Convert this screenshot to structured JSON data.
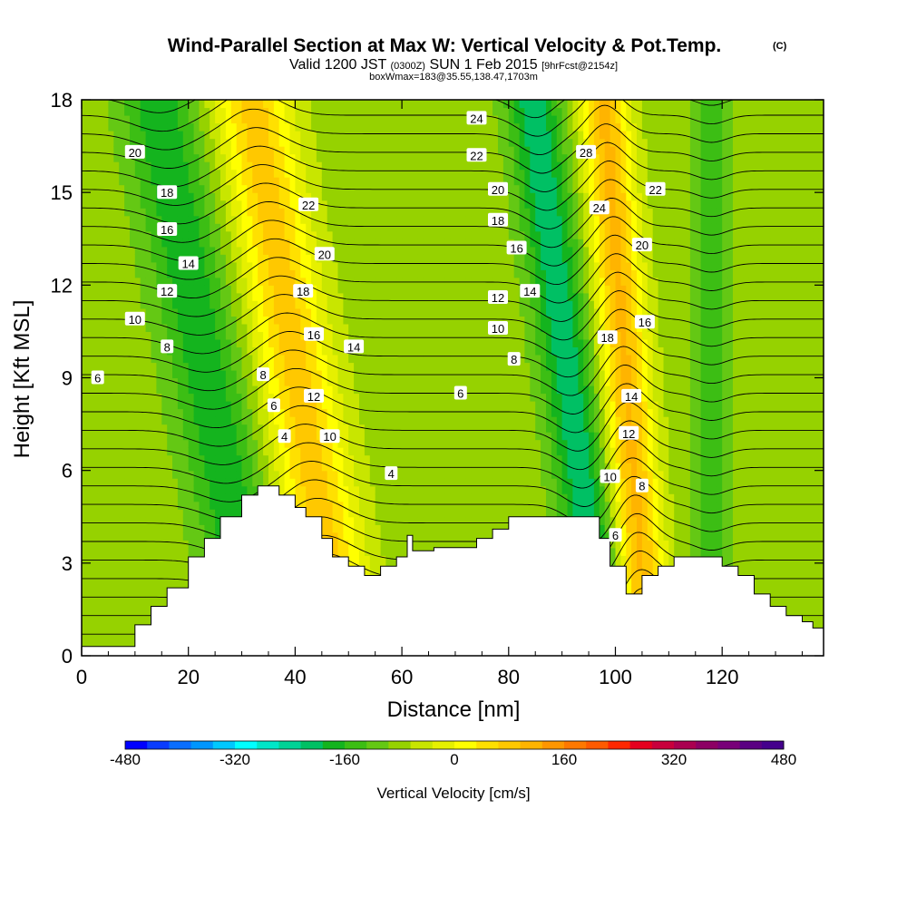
{
  "chart_data": {
    "type": "heatmap",
    "title": "Wind-Parallel Section at Max W: Vertical Velocity & Pot.Temp.",
    "title_mark": "(C)",
    "subtitle": {
      "valid": "Valid 1200 JST",
      "utc": "(0300Z)",
      "date": "SUN 1 Feb 2015",
      "fcst": "[9hrFcst@2154z]"
    },
    "info_line": "boxWmax=183@35.55,138.47,1703m",
    "xlabel": "Distance [nm]",
    "ylabel": "Height [Kft MSL]",
    "xlim": [
      0,
      139
    ],
    "ylim": [
      0,
      18
    ],
    "xticks": [
      "0",
      "20",
      "40",
      "60",
      "80",
      "100",
      "120"
    ],
    "yticks": [
      "0",
      "3",
      "6",
      "9",
      "12",
      "15",
      "18"
    ],
    "colorbar": {
      "label": "Vertical Velocity [cm/s]",
      "ticks": [
        "-480",
        "-320",
        "-160",
        "0",
        "160",
        "320",
        "480"
      ],
      "min": -480,
      "max": 480,
      "step": 40,
      "colors": [
        "#0000ff",
        "#0a3cff",
        "#0a6eff",
        "#0096ff",
        "#00c8ff",
        "#00ffff",
        "#00e6c8",
        "#00d296",
        "#00c064",
        "#14b41e",
        "#3cbe14",
        "#64c814",
        "#96d200",
        "#c8e600",
        "#e6f000",
        "#ffff00",
        "#ffe000",
        "#ffc800",
        "#ffb400",
        "#ff9600",
        "#ff7800",
        "#ff5a00",
        "#ff2800",
        "#e6001e",
        "#c8003c",
        "#aa0050",
        "#8c0064",
        "#780078",
        "#5a0082",
        "#44008c"
      ]
    },
    "velocity_field": {
      "units": "cm/s",
      "background": 20,
      "bands": [
        {
          "x0": 33,
          "slope_nm_per_kft": -1.05,
          "width_nm": 7,
          "peak": -130
        },
        {
          "x0": 49,
          "slope_nm_per_kft": -0.95,
          "width_nm": 7,
          "peak": 200
        },
        {
          "x0": 98,
          "slope_nm_per_kft": -0.75,
          "width_nm": 5,
          "peak": -170
        },
        {
          "x0": 106,
          "slope_nm_per_kft": -0.45,
          "width_nm": 4.5,
          "peak": 230
        },
        {
          "x0": 118,
          "slope_nm_per_kft": 0.0,
          "width_nm": 4,
          "peak": -70
        }
      ]
    },
    "theta_contours": {
      "units": "°C",
      "interval": 1,
      "labeled": [
        {
          "value": "20",
          "x": 10,
          "y": 16.3
        },
        {
          "value": "18",
          "x": 16,
          "y": 15.0
        },
        {
          "value": "16",
          "x": 16,
          "y": 13.8
        },
        {
          "value": "14",
          "x": 20,
          "y": 12.7
        },
        {
          "value": "12",
          "x": 16,
          "y": 11.8
        },
        {
          "value": "10",
          "x": 10,
          "y": 10.9
        },
        {
          "value": "8",
          "x": 16,
          "y": 10.0
        },
        {
          "value": "6",
          "x": 3,
          "y": 9.0
        },
        {
          "value": "22",
          "x": 42.5,
          "y": 14.6
        },
        {
          "value": "20",
          "x": 45.5,
          "y": 13.0
        },
        {
          "value": "18",
          "x": 41.5,
          "y": 11.8
        },
        {
          "value": "16",
          "x": 43.5,
          "y": 10.4
        },
        {
          "value": "14",
          "x": 51,
          "y": 10.0
        },
        {
          "value": "8",
          "x": 34,
          "y": 9.1
        },
        {
          "value": "12",
          "x": 43.5,
          "y": 8.4
        },
        {
          "value": "6",
          "x": 36,
          "y": 8.1
        },
        {
          "value": "10",
          "x": 46.5,
          "y": 7.1
        },
        {
          "value": "4",
          "x": 38,
          "y": 7.1
        },
        {
          "value": "4",
          "x": 58,
          "y": 5.9
        },
        {
          "value": "24",
          "x": 74,
          "y": 17.4
        },
        {
          "value": "22",
          "x": 74,
          "y": 16.2
        },
        {
          "value": "20",
          "x": 78,
          "y": 15.1
        },
        {
          "value": "18",
          "x": 78,
          "y": 14.1
        },
        {
          "value": "16",
          "x": 81.5,
          "y": 13.2
        },
        {
          "value": "14",
          "x": 84,
          "y": 11.8
        },
        {
          "value": "12",
          "x": 78,
          "y": 11.6
        },
        {
          "value": "10",
          "x": 78,
          "y": 10.6
        },
        {
          "value": "8",
          "x": 81,
          "y": 9.6
        },
        {
          "value": "6",
          "x": 71,
          "y": 8.5
        },
        {
          "value": "28",
          "x": 94.5,
          "y": 16.3
        },
        {
          "value": "24",
          "x": 97,
          "y": 14.5
        },
        {
          "value": "22",
          "x": 107.5,
          "y": 15.1
        },
        {
          "value": "20",
          "x": 105,
          "y": 13.3
        },
        {
          "value": "18",
          "x": 98.5,
          "y": 10.3
        },
        {
          "value": "16",
          "x": 105.5,
          "y": 10.8
        },
        {
          "value": "14",
          "x": 103,
          "y": 8.4
        },
        {
          "value": "12",
          "x": 102.5,
          "y": 7.2
        },
        {
          "value": "10",
          "x": 99,
          "y": 5.8
        },
        {
          "value": "8",
          "x": 105,
          "y": 5.5
        },
        {
          "value": "6",
          "x": 100,
          "y": 3.9
        }
      ]
    },
    "terrain_kft": [
      [
        0,
        0.3
      ],
      [
        10,
        0.3
      ],
      [
        10,
        1.0
      ],
      [
        13,
        1.0
      ],
      [
        13,
        1.6
      ],
      [
        16,
        1.6
      ],
      [
        16,
        2.2
      ],
      [
        20,
        2.2
      ],
      [
        20,
        3.2
      ],
      [
        23,
        3.2
      ],
      [
        23,
        3.8
      ],
      [
        26,
        3.8
      ],
      [
        26,
        4.5
      ],
      [
        30,
        4.5
      ],
      [
        30,
        5.2
      ],
      [
        33,
        5.2
      ],
      [
        33,
        5.5
      ],
      [
        37,
        5.5
      ],
      [
        37,
        5.2
      ],
      [
        40,
        5.2
      ],
      [
        40,
        4.8
      ],
      [
        42,
        4.8
      ],
      [
        42,
        4.5
      ],
      [
        45,
        4.5
      ],
      [
        45,
        3.8
      ],
      [
        47,
        3.8
      ],
      [
        47,
        3.2
      ],
      [
        50,
        3.2
      ],
      [
        50,
        2.9
      ],
      [
        53,
        2.9
      ],
      [
        53,
        2.6
      ],
      [
        56,
        2.6
      ],
      [
        56,
        2.9
      ],
      [
        59,
        2.9
      ],
      [
        59,
        3.2
      ],
      [
        61,
        3.2
      ],
      [
        61,
        3.9
      ],
      [
        62,
        3.9
      ],
      [
        62,
        3.4
      ],
      [
        66,
        3.4
      ],
      [
        66,
        3.5
      ],
      [
        74,
        3.5
      ],
      [
        74,
        3.8
      ],
      [
        77,
        3.8
      ],
      [
        77,
        4.1
      ],
      [
        80,
        4.1
      ],
      [
        80,
        4.5
      ],
      [
        97,
        4.5
      ],
      [
        97,
        3.8
      ],
      [
        99,
        3.8
      ],
      [
        99,
        2.9
      ],
      [
        102,
        2.9
      ],
      [
        102,
        2.0
      ],
      [
        105,
        2.0
      ],
      [
        105,
        2.6
      ],
      [
        108,
        2.6
      ],
      [
        108,
        2.9
      ],
      [
        111,
        2.9
      ],
      [
        111,
        3.2
      ],
      [
        120,
        3.2
      ],
      [
        120,
        2.9
      ],
      [
        123,
        2.9
      ],
      [
        123,
        2.6
      ],
      [
        126,
        2.6
      ],
      [
        126,
        2.0
      ],
      [
        129,
        2.0
      ],
      [
        129,
        1.6
      ],
      [
        132,
        1.6
      ],
      [
        132,
        1.3
      ],
      [
        135,
        1.3
      ],
      [
        135,
        1.1
      ],
      [
        137,
        1.1
      ],
      [
        137,
        0.9
      ],
      [
        139,
        0.9
      ],
      [
        139,
        0
      ],
      [
        0,
        0
      ]
    ]
  }
}
